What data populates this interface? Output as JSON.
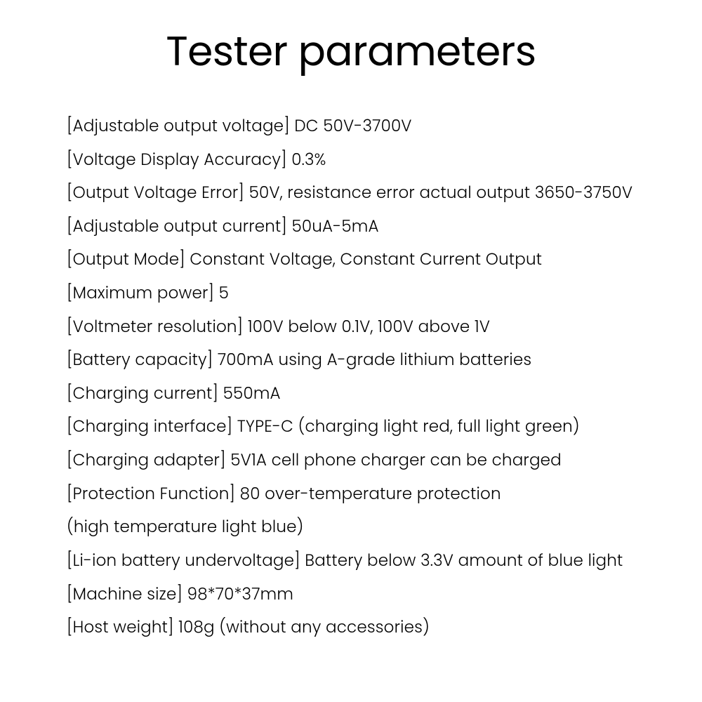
{
  "title": "Tester parameters",
  "lines": [
    "[Adjustable output voltage] DC 50V-3700V",
    "[Voltage Display Accuracy] 0.3%",
    "[Output Voltage Error] 50V, resistance error actual output 3650-3750V",
    "[Adjustable output current] 50uA-5mA",
    "[Output Mode] Constant Voltage, Constant Current Output",
    "[Maximum power] 5",
    "[Voltmeter resolution] 100V below 0.1V, 100V above 1V",
    "[Battery capacity] 700mA using A-grade lithium batteries",
    "[Charging current] 550mA",
    "[Charging interface] TYPE-C (charging light red, full light green)",
    "[Charging adapter] 5V1A cell phone charger can be charged",
    "[Protection Function] 80 over-temperature protection",
    "(high temperature light blue)",
    "[Li-ion battery undervoltage] Battery below 3.3V amount of blue light",
    "[Machine size] 98*70*37mm",
    "[Host weight] 108g (without any accessories)"
  ]
}
